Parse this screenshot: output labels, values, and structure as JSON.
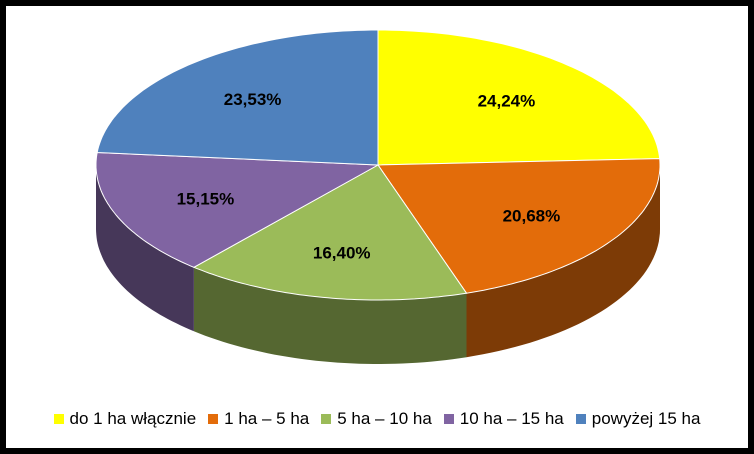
{
  "chart_data": {
    "type": "pie",
    "style": "3d",
    "categories": [
      "do 1 ha włącznie",
      "1 ha – 5 ha",
      "5 ha – 10 ha",
      "10 ha – 15 ha",
      "powyżej 15 ha"
    ],
    "values": [
      24.24,
      20.68,
      16.4,
      15.15,
      23.53
    ],
    "value_labels": [
      "24,24%",
      "20,68%",
      "16,40%",
      "15,15%",
      "23,53%"
    ],
    "colors": [
      "#ffff00",
      "#e36c0a",
      "#9bbb59",
      "#8064a2",
      "#4f81bd"
    ],
    "legend_position": "bottom"
  }
}
